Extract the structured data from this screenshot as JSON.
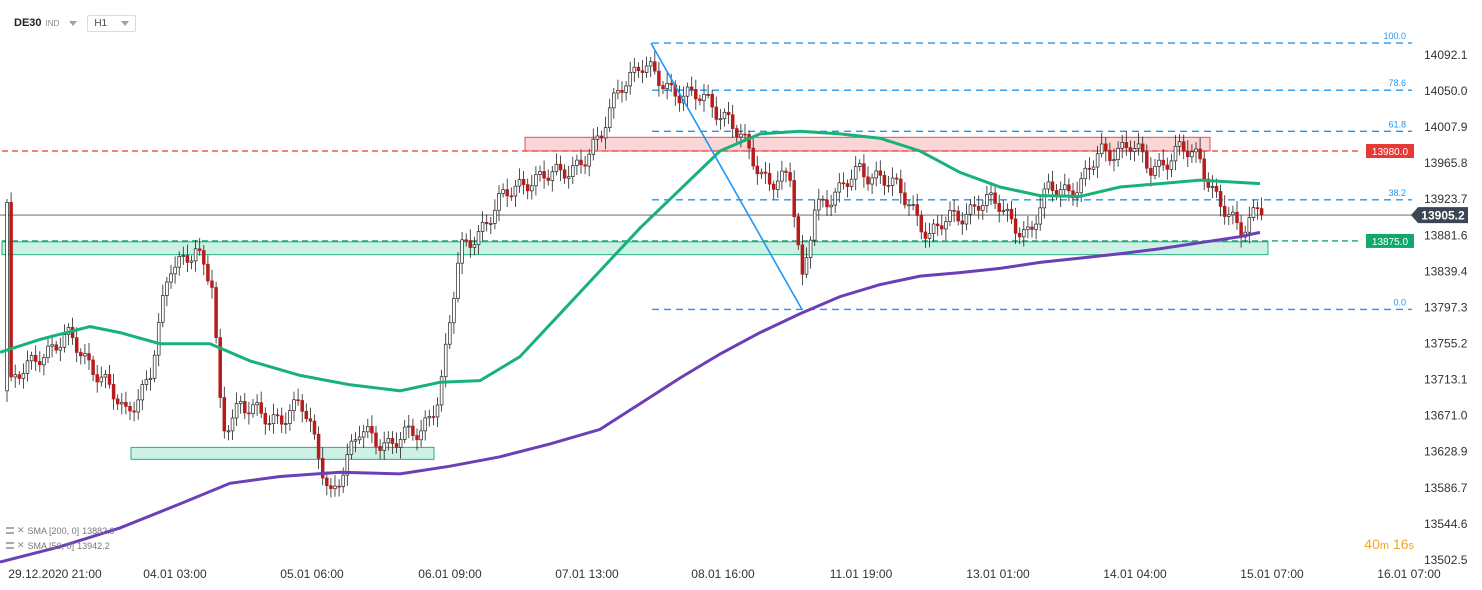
{
  "header": {
    "symbol": "DE30",
    "symbol_type": "IND",
    "timeframe": "H1"
  },
  "indicators": [
    {
      "label": "SMA [200, 0]",
      "value": "13882.9",
      "color": "#6b3fb5"
    },
    {
      "label": "SMA [50, 0]",
      "value": "13942.2",
      "color": "#16b27a"
    }
  ],
  "timer": {
    "minutes": "40",
    "m": "m",
    "seconds": "16",
    "s": "s"
  },
  "chart_data": {
    "type": "candlestick",
    "ylim": [
      13490,
      14130
    ],
    "y_ticks": [
      14092.1,
      14050.0,
      14007.9,
      13965.8,
      13923.7,
      13881.6,
      13839.4,
      13797.3,
      13755.2,
      13713.1,
      13671.0,
      13628.9,
      13586.7,
      13544.6,
      13502.5
    ],
    "x_labels": [
      "29.12.2020 21:00",
      "04.01 03:00",
      "05.01 06:00",
      "06.01 09:00",
      "07.01 13:00",
      "08.01 16:00",
      "11.01 19:00",
      "13.01 01:00",
      "14.01 04:00",
      "15.01 07:00",
      "16.01 07:00"
    ],
    "last_price": "13905.2",
    "last_price_value": 13905.2,
    "price_labels": [
      {
        "text": "13980.0",
        "value": 13980.0,
        "color": "#e53935"
      },
      {
        "text": "13875.0",
        "value": 13875.0,
        "color": "#13a86b"
      }
    ],
    "fib_levels": [
      {
        "label": "100.0",
        "value": 14106
      },
      {
        "label": "78.6",
        "value": 14051
      },
      {
        "label": "61.8",
        "value": 14003
      },
      {
        "label": "38.2",
        "value": 13923
      },
      {
        "label": "0.0",
        "value": 13795
      }
    ],
    "zones": [
      {
        "color": "red",
        "low": 13980,
        "high": 13996
      },
      {
        "color": "green",
        "low": 13859,
        "high": 13874
      },
      {
        "color": "green",
        "low": 13620,
        "high": 13634
      }
    ],
    "sma_50": [
      [
        0,
        13745
      ],
      [
        40,
        13760
      ],
      [
        90,
        13775
      ],
      [
        120,
        13768
      ],
      [
        160,
        13755
      ],
      [
        210,
        13755
      ],
      [
        250,
        13735
      ],
      [
        300,
        13718
      ],
      [
        350,
        13707
      ],
      [
        400,
        13700
      ],
      [
        440,
        13710
      ],
      [
        480,
        13712
      ],
      [
        520,
        13740
      ],
      [
        560,
        13790
      ],
      [
        600,
        13840
      ],
      [
        640,
        13890
      ],
      [
        680,
        13935
      ],
      [
        720,
        13980
      ],
      [
        760,
        14000
      ],
      [
        800,
        14003
      ],
      [
        840,
        14000
      ],
      [
        880,
        13995
      ],
      [
        920,
        13980
      ],
      [
        960,
        13955
      ],
      [
        1000,
        13938
      ],
      [
        1040,
        13928
      ],
      [
        1080,
        13927
      ],
      [
        1120,
        13938
      ],
      [
        1160,
        13942
      ],
      [
        1200,
        13946
      ],
      [
        1260,
        13942
      ]
    ],
    "sma_200": [
      [
        0,
        13500
      ],
      [
        60,
        13518
      ],
      [
        120,
        13540
      ],
      [
        180,
        13568
      ],
      [
        230,
        13592
      ],
      [
        280,
        13600
      ],
      [
        340,
        13605
      ],
      [
        400,
        13603
      ],
      [
        450,
        13612
      ],
      [
        500,
        13623
      ],
      [
        550,
        13638
      ],
      [
        600,
        13655
      ],
      [
        640,
        13685
      ],
      [
        680,
        13715
      ],
      [
        720,
        13743
      ],
      [
        760,
        13768
      ],
      [
        800,
        13790
      ],
      [
        840,
        13810
      ],
      [
        880,
        13824
      ],
      [
        920,
        13834
      ],
      [
        960,
        13838
      ],
      [
        1000,
        13843
      ],
      [
        1040,
        13850
      ],
      [
        1080,
        13855
      ],
      [
        1120,
        13860
      ],
      [
        1160,
        13866
      ],
      [
        1200,
        13873
      ],
      [
        1240,
        13880
      ],
      [
        1260,
        13885
      ]
    ],
    "fib_line": {
      "from_value": 14106,
      "to_value": 13795
    }
  }
}
